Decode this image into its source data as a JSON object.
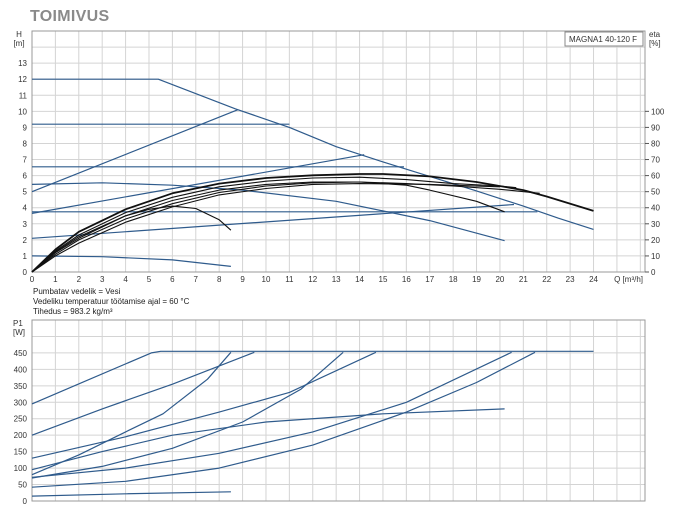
{
  "title": "TOIMIVUS",
  "notes": [
    "Pumbatav vedelik = Vesi",
    "Vedeliku temperatuur töötamise ajal = 60 °C",
    "Tihedus = 983.2 kg/m³"
  ],
  "colors": {
    "head_curves": "#2f5b8c",
    "efficiency_curves": "#111111",
    "grid": "#d4d4d4"
  },
  "chart_data": [
    {
      "type": "line",
      "legend": "MAGNA1 40-120 F",
      "legend_placement": "top-right",
      "ylabel": "H\n[m]",
      "ylabel_lines": [
        "H",
        "[m]"
      ],
      "y2label_lines": [
        "eta",
        "[%]"
      ],
      "xlabel": "Q [m³/h]",
      "xlim": [
        0,
        26.2
      ],
      "ylim": [
        0,
        15
      ],
      "y2lim": [
        0,
        150
      ],
      "xticks": [
        0,
        1,
        2,
        3,
        4,
        5,
        6,
        7,
        8,
        9,
        10,
        11,
        12,
        13,
        14,
        15,
        16,
        17,
        18,
        19,
        20,
        21,
        22,
        23,
        24
      ],
      "yticks": [
        0,
        1,
        2,
        3,
        4,
        5,
        6,
        7,
        8,
        9,
        10,
        11,
        12,
        13
      ],
      "y2ticks": [
        0,
        10,
        20,
        30,
        40,
        50,
        60,
        70,
        80,
        90,
        100
      ],
      "grid": true,
      "series": [
        {
          "kind": "head",
          "points": [
            [
              0,
              12
            ],
            [
              5.4,
              12
            ],
            [
              8.7,
              10.15
            ],
            [
              11,
              9.0
            ],
            [
              13,
              7.8
            ],
            [
              15,
              6.85
            ],
            [
              17,
              5.95
            ],
            [
              19,
              5.05
            ],
            [
              21,
              4.1
            ],
            [
              22.5,
              3.35
            ],
            [
              24,
              2.65
            ]
          ]
        },
        {
          "kind": "head",
          "points": [
            [
              0,
              9.2
            ],
            [
              11,
              9.2
            ]
          ]
        },
        {
          "kind": "head",
          "points": [
            [
              0,
              6.55
            ],
            [
              15.9,
              6.55
            ]
          ]
        },
        {
          "kind": "head",
          "points": [
            [
              0,
              3.75
            ],
            [
              21.6,
              3.75
            ]
          ]
        },
        {
          "kind": "head",
          "points": [
            [
              0,
              5.0
            ],
            [
              8.8,
              10.1
            ]
          ]
        },
        {
          "kind": "head",
          "points": [
            [
              0,
              3.65
            ],
            [
              14.2,
              7.3
            ]
          ]
        },
        {
          "kind": "head",
          "points": [
            [
              0,
              2.1
            ],
            [
              20.6,
              4.2
            ]
          ]
        },
        {
          "kind": "head",
          "points": [
            [
              0,
              5.45
            ],
            [
              3,
              5.55
            ],
            [
              6,
              5.4
            ],
            [
              9,
              5.1
            ],
            [
              13,
              4.4
            ],
            [
              17,
              3.2
            ],
            [
              20.2,
              1.95
            ]
          ]
        },
        {
          "kind": "head",
          "points": [
            [
              0,
              1.0
            ],
            [
              3,
              0.95
            ],
            [
              6,
              0.75
            ],
            [
              8.5,
              0.35
            ]
          ]
        },
        {
          "kind": "eta",
          "points": [
            [
              0,
              0
            ],
            [
              1,
              1.4
            ],
            [
              2,
              2.5
            ],
            [
              4,
              3.9
            ],
            [
              6,
              4.9
            ],
            [
              8,
              5.5
            ],
            [
              10,
              5.85
            ],
            [
              12,
              6.02
            ],
            [
              14,
              6.1
            ],
            [
              15,
              6.1
            ],
            [
              17,
              5.95
            ],
            [
              19,
              5.6
            ],
            [
              21,
              5.1
            ],
            [
              22,
              4.7
            ],
            [
              24,
              3.8
            ]
          ]
        },
        {
          "kind": "eta",
          "points": [
            [
              0,
              0
            ],
            [
              1,
              1.3
            ],
            [
              2,
              2.3
            ],
            [
              4,
              3.7
            ],
            [
              6,
              4.65
            ],
            [
              8,
              5.3
            ],
            [
              10,
              5.65
            ],
            [
              12,
              5.85
            ],
            [
              14,
              5.9
            ],
            [
              16,
              5.75
            ],
            [
              18,
              5.5
            ],
            [
              20,
              5.35
            ],
            [
              20.7,
              5.25
            ]
          ]
        },
        {
          "kind": "eta",
          "points": [
            [
              0,
              0
            ],
            [
              1,
              1.2
            ],
            [
              2,
              2.1
            ],
            [
              4,
              3.5
            ],
            [
              6,
              4.45
            ],
            [
              8,
              5.1
            ],
            [
              10,
              5.45
            ],
            [
              12,
              5.6
            ],
            [
              14,
              5.6
            ],
            [
              16,
              5.5
            ],
            [
              18,
              5.35
            ],
            [
              20,
              5.15
            ],
            [
              21.7,
              4.9
            ]
          ]
        },
        {
          "kind": "eta",
          "points": [
            [
              0,
              0
            ],
            [
              1,
              1.1
            ],
            [
              2,
              2.0
            ],
            [
              4,
              3.3
            ],
            [
              6,
              4.25
            ],
            [
              8,
              4.95
            ],
            [
              10,
              5.35
            ],
            [
              12,
              5.55
            ],
            [
              14,
              5.6
            ],
            [
              16,
              5.4
            ],
            [
              17,
              5.1
            ],
            [
              19,
              4.4
            ],
            [
              20.2,
              3.75
            ]
          ]
        },
        {
          "kind": "eta",
          "points": [
            [
              0,
              0
            ],
            [
              1,
              1.0
            ],
            [
              2,
              1.8
            ],
            [
              4,
              3.1
            ],
            [
              6,
              4.05
            ],
            [
              8,
              4.8
            ],
            [
              10,
              5.2
            ],
            [
              12,
              5.45
            ],
            [
              14,
              5.5
            ],
            [
              17,
              5.45
            ],
            [
              20,
              5.3
            ]
          ]
        },
        {
          "kind": "eta",
          "points": [
            [
              0,
              0
            ],
            [
              1,
              1.25
            ],
            [
              2,
              2.2
            ],
            [
              4,
              3.5
            ],
            [
              5,
              3.9
            ],
            [
              6,
              4.1
            ],
            [
              7,
              3.95
            ],
            [
              8,
              3.25
            ],
            [
              8.5,
              2.6
            ]
          ]
        }
      ]
    },
    {
      "type": "line",
      "ylabel_lines": [
        "P1",
        "[W]"
      ],
      "xlim": [
        0,
        26.2
      ],
      "ylim": [
        0,
        550
      ],
      "yticks": [
        0,
        50,
        100,
        150,
        200,
        250,
        300,
        350,
        400,
        450
      ],
      "grid": true,
      "series": [
        {
          "points": [
            [
              0,
              295
            ],
            [
              5.1,
              450
            ],
            [
              5.5,
              455
            ],
            [
              24,
              455
            ]
          ]
        },
        {
          "points": [
            [
              0,
              200
            ],
            [
              3,
              280
            ],
            [
              6,
              355
            ],
            [
              9.5,
              452
            ]
          ]
        },
        {
          "points": [
            [
              0,
              80
            ],
            [
              2,
              140
            ],
            [
              4,
              210
            ],
            [
              5.6,
              265
            ],
            [
              7.5,
              370
            ],
            [
              8.5,
              452
            ]
          ]
        },
        {
          "points": [
            [
              0,
              130
            ],
            [
              4,
              195
            ],
            [
              8,
              270
            ],
            [
              11,
              330
            ],
            [
              14.7,
              452
            ]
          ]
        },
        {
          "points": [
            [
              0,
              70
            ],
            [
              3,
              105
            ],
            [
              6,
              160
            ],
            [
              9,
              240
            ],
            [
              11.5,
              340
            ],
            [
              13.3,
              452
            ]
          ]
        },
        {
          "points": [
            [
              0,
              95
            ],
            [
              3,
              150
            ],
            [
              6,
              200
            ],
            [
              10,
              240
            ],
            [
              15,
              265
            ],
            [
              20.2,
              280
            ]
          ]
        },
        {
          "points": [
            [
              0,
              72
            ],
            [
              4,
              100
            ],
            [
              8,
              145
            ],
            [
              12,
              210
            ],
            [
              16,
              300
            ],
            [
              20.5,
              452
            ]
          ]
        },
        {
          "points": [
            [
              0,
              42
            ],
            [
              4,
              60
            ],
            [
              8,
              100
            ],
            [
              12,
              170
            ],
            [
              16,
              270
            ],
            [
              19,
              360
            ],
            [
              21.5,
              452
            ]
          ]
        },
        {
          "points": [
            [
              0,
              15
            ],
            [
              4,
              22
            ],
            [
              8.5,
              28
            ]
          ]
        }
      ]
    }
  ]
}
